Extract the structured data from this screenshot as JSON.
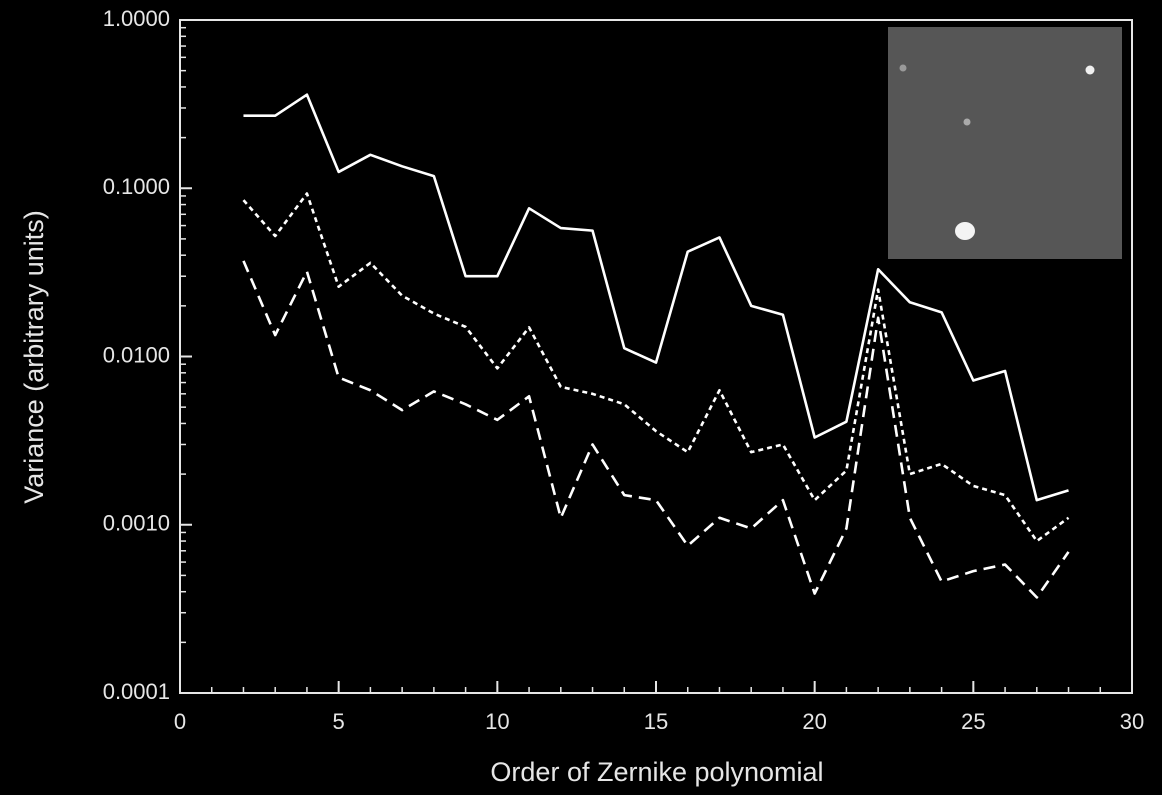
{
  "chart_data": {
    "type": "line",
    "xlabel": "Order of Zernike polynomial",
    "ylabel": "Variance (arbitrary units)",
    "yscale": "log",
    "x": [
      2,
      3,
      4,
      5,
      6,
      7,
      8,
      9,
      10,
      11,
      12,
      13,
      14,
      15,
      16,
      17,
      18,
      19,
      20,
      21,
      22,
      23,
      24,
      25,
      26,
      27,
      28
    ],
    "series": [
      {
        "color": "#ffffff",
        "dash": "solid",
        "values": [
          0.27,
          0.27,
          0.36,
          0.125,
          0.158,
          0.135,
          0.118,
          0.03,
          0.03,
          0.076,
          0.058,
          0.056,
          0.0112,
          0.0092,
          0.042,
          0.051,
          0.02,
          0.0177,
          0.0033,
          0.0041,
          0.033,
          0.021,
          0.0183,
          0.0072,
          0.0082,
          0.0014,
          0.0016
        ]
      },
      {
        "color": "#ffffff",
        "dash": "dotted",
        "values": [
          0.085,
          0.052,
          0.093,
          0.026,
          0.036,
          0.023,
          0.018,
          0.015,
          0.0085,
          0.0149,
          0.0066,
          0.006,
          0.0052,
          0.0036,
          0.0027,
          0.0063,
          0.0027,
          0.003,
          0.0014,
          0.0021,
          0.025,
          0.002,
          0.0023,
          0.0017,
          0.0015,
          0.0008,
          0.0011
        ]
      },
      {
        "color": "#ffffff",
        "dash": "dashed",
        "values": [
          0.037,
          0.0134,
          0.032,
          0.0075,
          0.0063,
          0.0048,
          0.0062,
          0.0052,
          0.0042,
          0.0058,
          0.0011,
          0.003,
          0.0015,
          0.0014,
          0.00075,
          0.0011,
          0.00095,
          0.0014,
          0.00039,
          0.00095,
          0.017,
          0.0011,
          0.00046,
          0.00053,
          0.00058,
          0.00037,
          0.00069
        ]
      }
    ],
    "xlim": [
      0,
      30
    ],
    "xticks": [
      0,
      5,
      10,
      15,
      20,
      25,
      30
    ],
    "ylim": [
      0.0001,
      1
    ],
    "yticks": [
      {
        "value": 1,
        "label": "1.0000"
      },
      {
        "value": 0.1,
        "label": "0.1000"
      },
      {
        "value": 0.01,
        "label": "0.0100"
      },
      {
        "value": 0.001,
        "label": "0.0010"
      },
      {
        "value": 0.0001,
        "label": "0.0001"
      }
    ]
  }
}
